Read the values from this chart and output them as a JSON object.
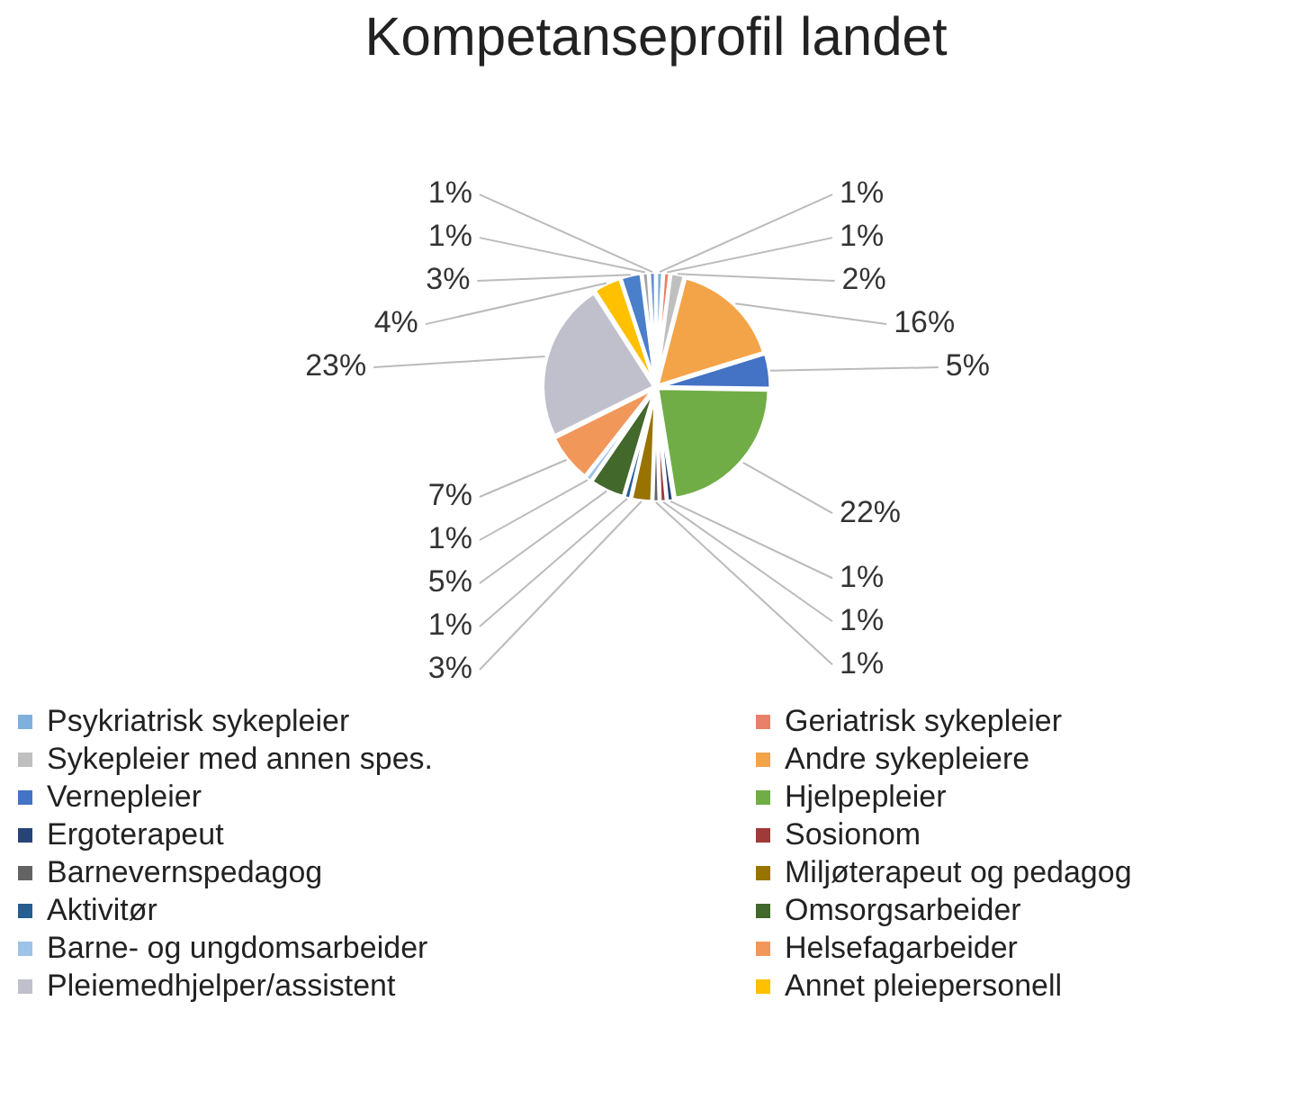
{
  "chart_data": {
    "type": "pie",
    "title": "Kompetanseprofil landet",
    "categories": [
      "Psykriatrisk sykepleier",
      "Geriatrisk sykepleier",
      "Sykepleier med annen spes.",
      "Andre sykepleiere",
      "Vernepleier",
      "Hjelpepleier",
      "Ergoterapeut",
      "Sosionom",
      "Barnevernspedagog",
      "Miljøterapeut og pedagog",
      "Aktivitør",
      "Omsorgsarbeider",
      "Barne- og ungdomsarbeider",
      "Helsefagarbeider",
      "Pleiemedhjelper/assistent",
      "Annet pleiepersonell",
      null,
      null,
      null
    ],
    "values": [
      1,
      1,
      2,
      16,
      5,
      22,
      1,
      1,
      1,
      3,
      1,
      5,
      1,
      7,
      23,
      4,
      3,
      1,
      1
    ],
    "colors": [
      "#7fb0dd",
      "#e8806a",
      "#bfbfbf",
      "#f4a448",
      "#4472c4",
      "#70ad47",
      "#264478",
      "#9e3a38",
      "#636363",
      "#997300",
      "#255e91",
      "#43682b",
      "#9dc3e6",
      "#f1975a",
      "#c0bfcc",
      "#ffc000",
      "#4a7fc9",
      "#a5a5a5",
      "#698ed0"
    ],
    "value_labels": [
      "1%",
      "1%",
      "2%",
      "16%",
      "5%",
      "22%",
      "1%",
      "1%",
      "1%",
      "3%",
      "1%",
      "5%",
      "1%",
      "7%",
      "23%",
      "4%",
      "3%",
      "1%",
      "1%"
    ],
    "legend": "bottom"
  }
}
